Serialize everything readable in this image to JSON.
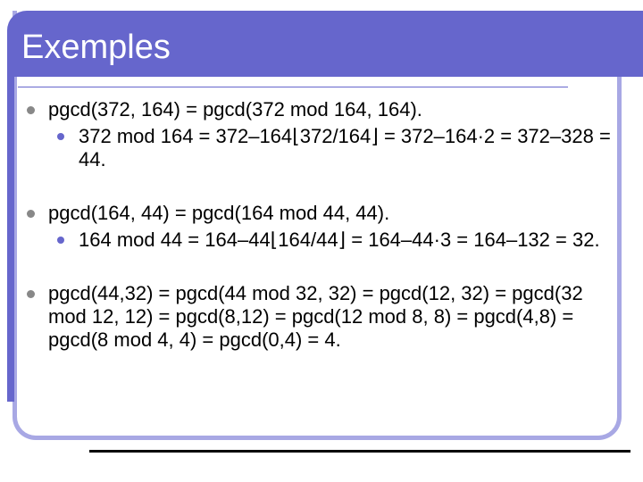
{
  "title": "Exemples",
  "items": [
    {
      "text": "pgcd(372, 164) = pgcd(372 mod 164, 164).",
      "subitems": [
        "372 mod 164 = 372–164⌊372/164⌋ = 372–164·2 = 372–328 = 44."
      ]
    },
    {
      "text": "pgcd(164, 44) = pgcd(164 mod 44, 44).",
      "subitems": [
        "164 mod 44 = 164–44⌊164/44⌋ = 164–44·3 = 164–132 = 32."
      ]
    },
    {
      "text": "pgcd(44,32) = pgcd(44 mod 32, 32) = pgcd(12, 32) = pgcd(32 mod 12, 12) = pgcd(8,12) = pgcd(12 mod 8, 8) = pgcd(4,8) = pgcd(8 mod 4, 4) = pgcd(0,4) = 4.",
      "subitems": []
    }
  ]
}
